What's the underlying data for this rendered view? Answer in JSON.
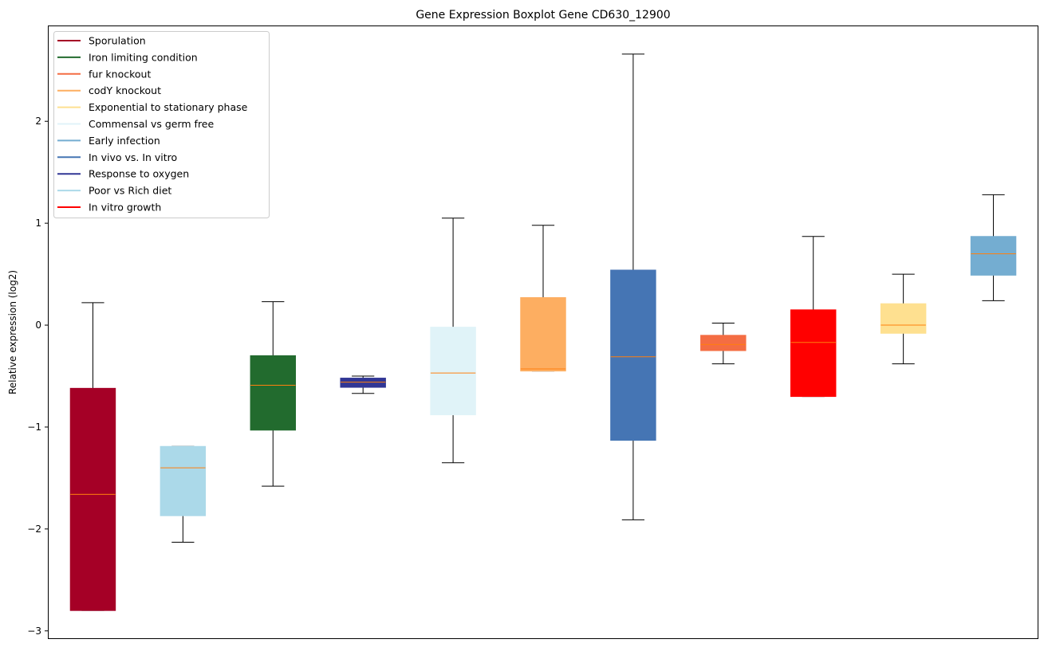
{
  "chart_data": {
    "type": "box",
    "title": "Gene Expression Boxplot Gene CD630_12900",
    "xlabel": "",
    "ylabel": "Relative expression (log2)",
    "ylim": [
      -3.08,
      2.94
    ],
    "yticks": [
      -3,
      -2,
      -1,
      0,
      1,
      2
    ],
    "ytick_labels": [
      "−3",
      "−2",
      "−1",
      "0",
      "1",
      "2"
    ],
    "grid": false,
    "legend_position": "top-left",
    "median_color": "#ff7f0e",
    "boxes": [
      {
        "name": "Sporulation",
        "color": "#a50026",
        "whislo": -2.8,
        "q1": -2.8,
        "med": -1.66,
        "q3": -0.62,
        "whishi": 0.22
      },
      {
        "name": "Poor vs Rich diet",
        "color": "#abd9e9",
        "whislo": -2.13,
        "q1": -1.87,
        "med": -1.4,
        "q3": -1.19,
        "whishi": -1.19
      },
      {
        "name": "Iron limiting condition",
        "color": "#226b2e",
        "whislo": -1.58,
        "q1": -1.03,
        "med": -0.59,
        "q3": -0.3,
        "whishi": 0.23
      },
      {
        "name": "Response to oxygen",
        "color": "#313695",
        "whislo": -0.67,
        "q1": -0.61,
        "med": -0.56,
        "q3": -0.52,
        "whishi": -0.5
      },
      {
        "name": "Commensal vs germ free",
        "color": "#e0f3f8",
        "whislo": -1.35,
        "q1": -0.88,
        "med": -0.47,
        "q3": -0.02,
        "whishi": 1.05
      },
      {
        "name": "codY knockout",
        "color": "#fdae61",
        "whislo": -0.45,
        "q1": -0.45,
        "med": -0.43,
        "q3": 0.27,
        "whishi": 0.98
      },
      {
        "name": "In vivo vs. In vitro",
        "color": "#4575b4",
        "whislo": -1.91,
        "q1": -1.13,
        "med": -0.31,
        "q3": 0.54,
        "whishi": 2.66
      },
      {
        "name": "fur knockout",
        "color": "#f46d43",
        "whislo": -0.38,
        "q1": -0.25,
        "med": -0.19,
        "q3": -0.1,
        "whishi": 0.02
      },
      {
        "name": "In vitro growth",
        "color": "#ff0000",
        "whislo": -0.7,
        "q1": -0.7,
        "med": -0.17,
        "q3": 0.15,
        "whishi": 0.87
      },
      {
        "name": "Exponential to stationary phase",
        "color": "#fee090",
        "whislo": -0.38,
        "q1": -0.08,
        "med": 0.0,
        "q3": 0.21,
        "whishi": 0.5
      },
      {
        "name": "Early infection",
        "color": "#74add1",
        "whislo": 0.24,
        "q1": 0.49,
        "med": 0.7,
        "q3": 0.87,
        "whishi": 1.28
      }
    ],
    "legend": [
      {
        "label": "Sporulation",
        "color": "#a50026"
      },
      {
        "label": "Iron limiting condition",
        "color": "#226b2e"
      },
      {
        "label": "fur knockout",
        "color": "#f46d43"
      },
      {
        "label": "codY knockout",
        "color": "#fdae61"
      },
      {
        "label": "Exponential to stationary phase",
        "color": "#fee090"
      },
      {
        "label": "Commensal vs germ free",
        "color": "#e0f3f8"
      },
      {
        "label": "Early infection",
        "color": "#74add1"
      },
      {
        "label": "In vivo vs. In vitro",
        "color": "#4575b4"
      },
      {
        "label": "Response to oxygen",
        "color": "#313695"
      },
      {
        "label": "Poor vs Rich diet",
        "color": "#abd9e9"
      },
      {
        "label": "In vitro growth",
        "color": "#ff0000"
      }
    ]
  }
}
